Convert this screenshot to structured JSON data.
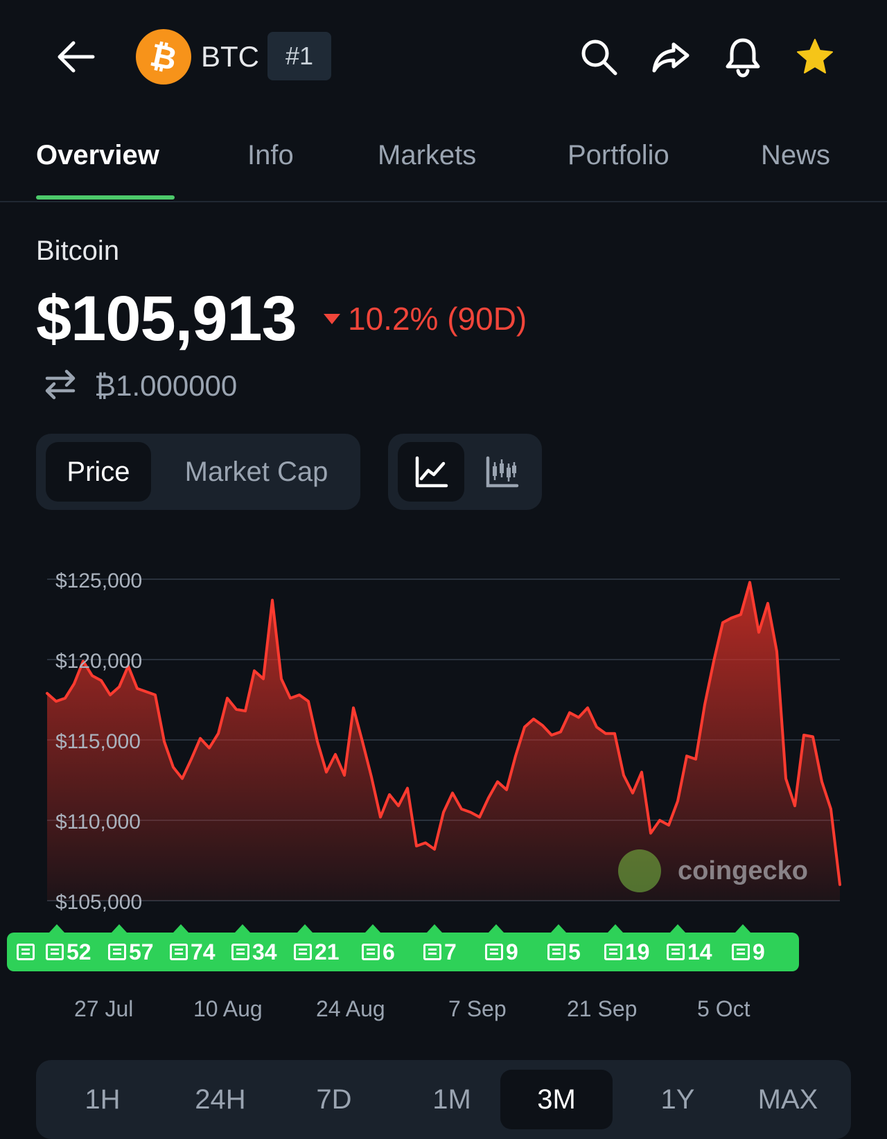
{
  "header": {
    "symbol": "BTC",
    "rank": "#1",
    "icons": [
      "back-arrow-icon",
      "bitcoin-logo-icon",
      "search-icon",
      "share-icon",
      "bell-icon",
      "star-icon"
    ],
    "star_color": "#f5c518",
    "logo_color": "#f7931a"
  },
  "tabs": [
    {
      "label": "Overview",
      "active": true
    },
    {
      "label": "Info"
    },
    {
      "label": "Markets"
    },
    {
      "label": "Portfolio"
    },
    {
      "label": "News"
    }
  ],
  "coin": {
    "name": "Bitcoin",
    "price": "$105,913",
    "change": "10.2% (90D)",
    "change_direction": "down",
    "change_color": "#f0453a",
    "btc_value": "₿1.000000"
  },
  "toggles": {
    "metric": [
      {
        "label": "Price",
        "active": true
      },
      {
        "label": "Market Cap"
      }
    ],
    "chart_type_icons": [
      "line-chart-icon",
      "candlestick-chart-icon"
    ]
  },
  "watermark": "coingecko",
  "news_markers": [
    "",
    "52",
    "57",
    "74",
    "34",
    "21",
    "6",
    "7",
    "9",
    "5",
    "19",
    "14",
    "9"
  ],
  "news_color": "#2ed158",
  "ranges": [
    {
      "label": "1H"
    },
    {
      "label": "24H"
    },
    {
      "label": "7D"
    },
    {
      "label": "1M"
    },
    {
      "label": "3M",
      "active": true
    },
    {
      "label": "1Y"
    },
    {
      "label": "MAX"
    }
  ],
  "chart_data": {
    "type": "area",
    "color": "#ff3b30",
    "ylim": [
      105000,
      125000
    ],
    "y_ticks": [
      "$125,000",
      "$120,000",
      "$115,000",
      "$110,000",
      "$105,000"
    ],
    "x_ticks": [
      "27 Jul",
      "10 Aug",
      "24 Aug",
      "7 Sep",
      "21 Sep",
      "5 Oct"
    ],
    "values": [
      117900,
      117400,
      117600,
      118500,
      119900,
      119000,
      118700,
      117800,
      118300,
      119600,
      118200,
      118000,
      117800,
      114900,
      113300,
      112600,
      113800,
      115100,
      114500,
      115400,
      117600,
      116900,
      116800,
      119300,
      118800,
      123700,
      118800,
      117600,
      117800,
      117400,
      114900,
      113000,
      114100,
      112800,
      117000,
      114900,
      112700,
      110200,
      111600,
      110900,
      112000,
      108400,
      108600,
      108200,
      110500,
      111700,
      110700,
      110500,
      110200,
      111400,
      112400,
      111900,
      114000,
      115800,
      116300,
      115900,
      115300,
      115500,
      116700,
      116400,
      117000,
      115800,
      115400,
      115400,
      112800,
      111700,
      113000,
      109200,
      110000,
      109700,
      111200,
      114000,
      113800,
      117200,
      119900,
      122300,
      122600,
      122800,
      124800,
      121700,
      123500,
      120500,
      112600,
      110900,
      115300,
      115200,
      112400,
      110700,
      106000
    ]
  }
}
